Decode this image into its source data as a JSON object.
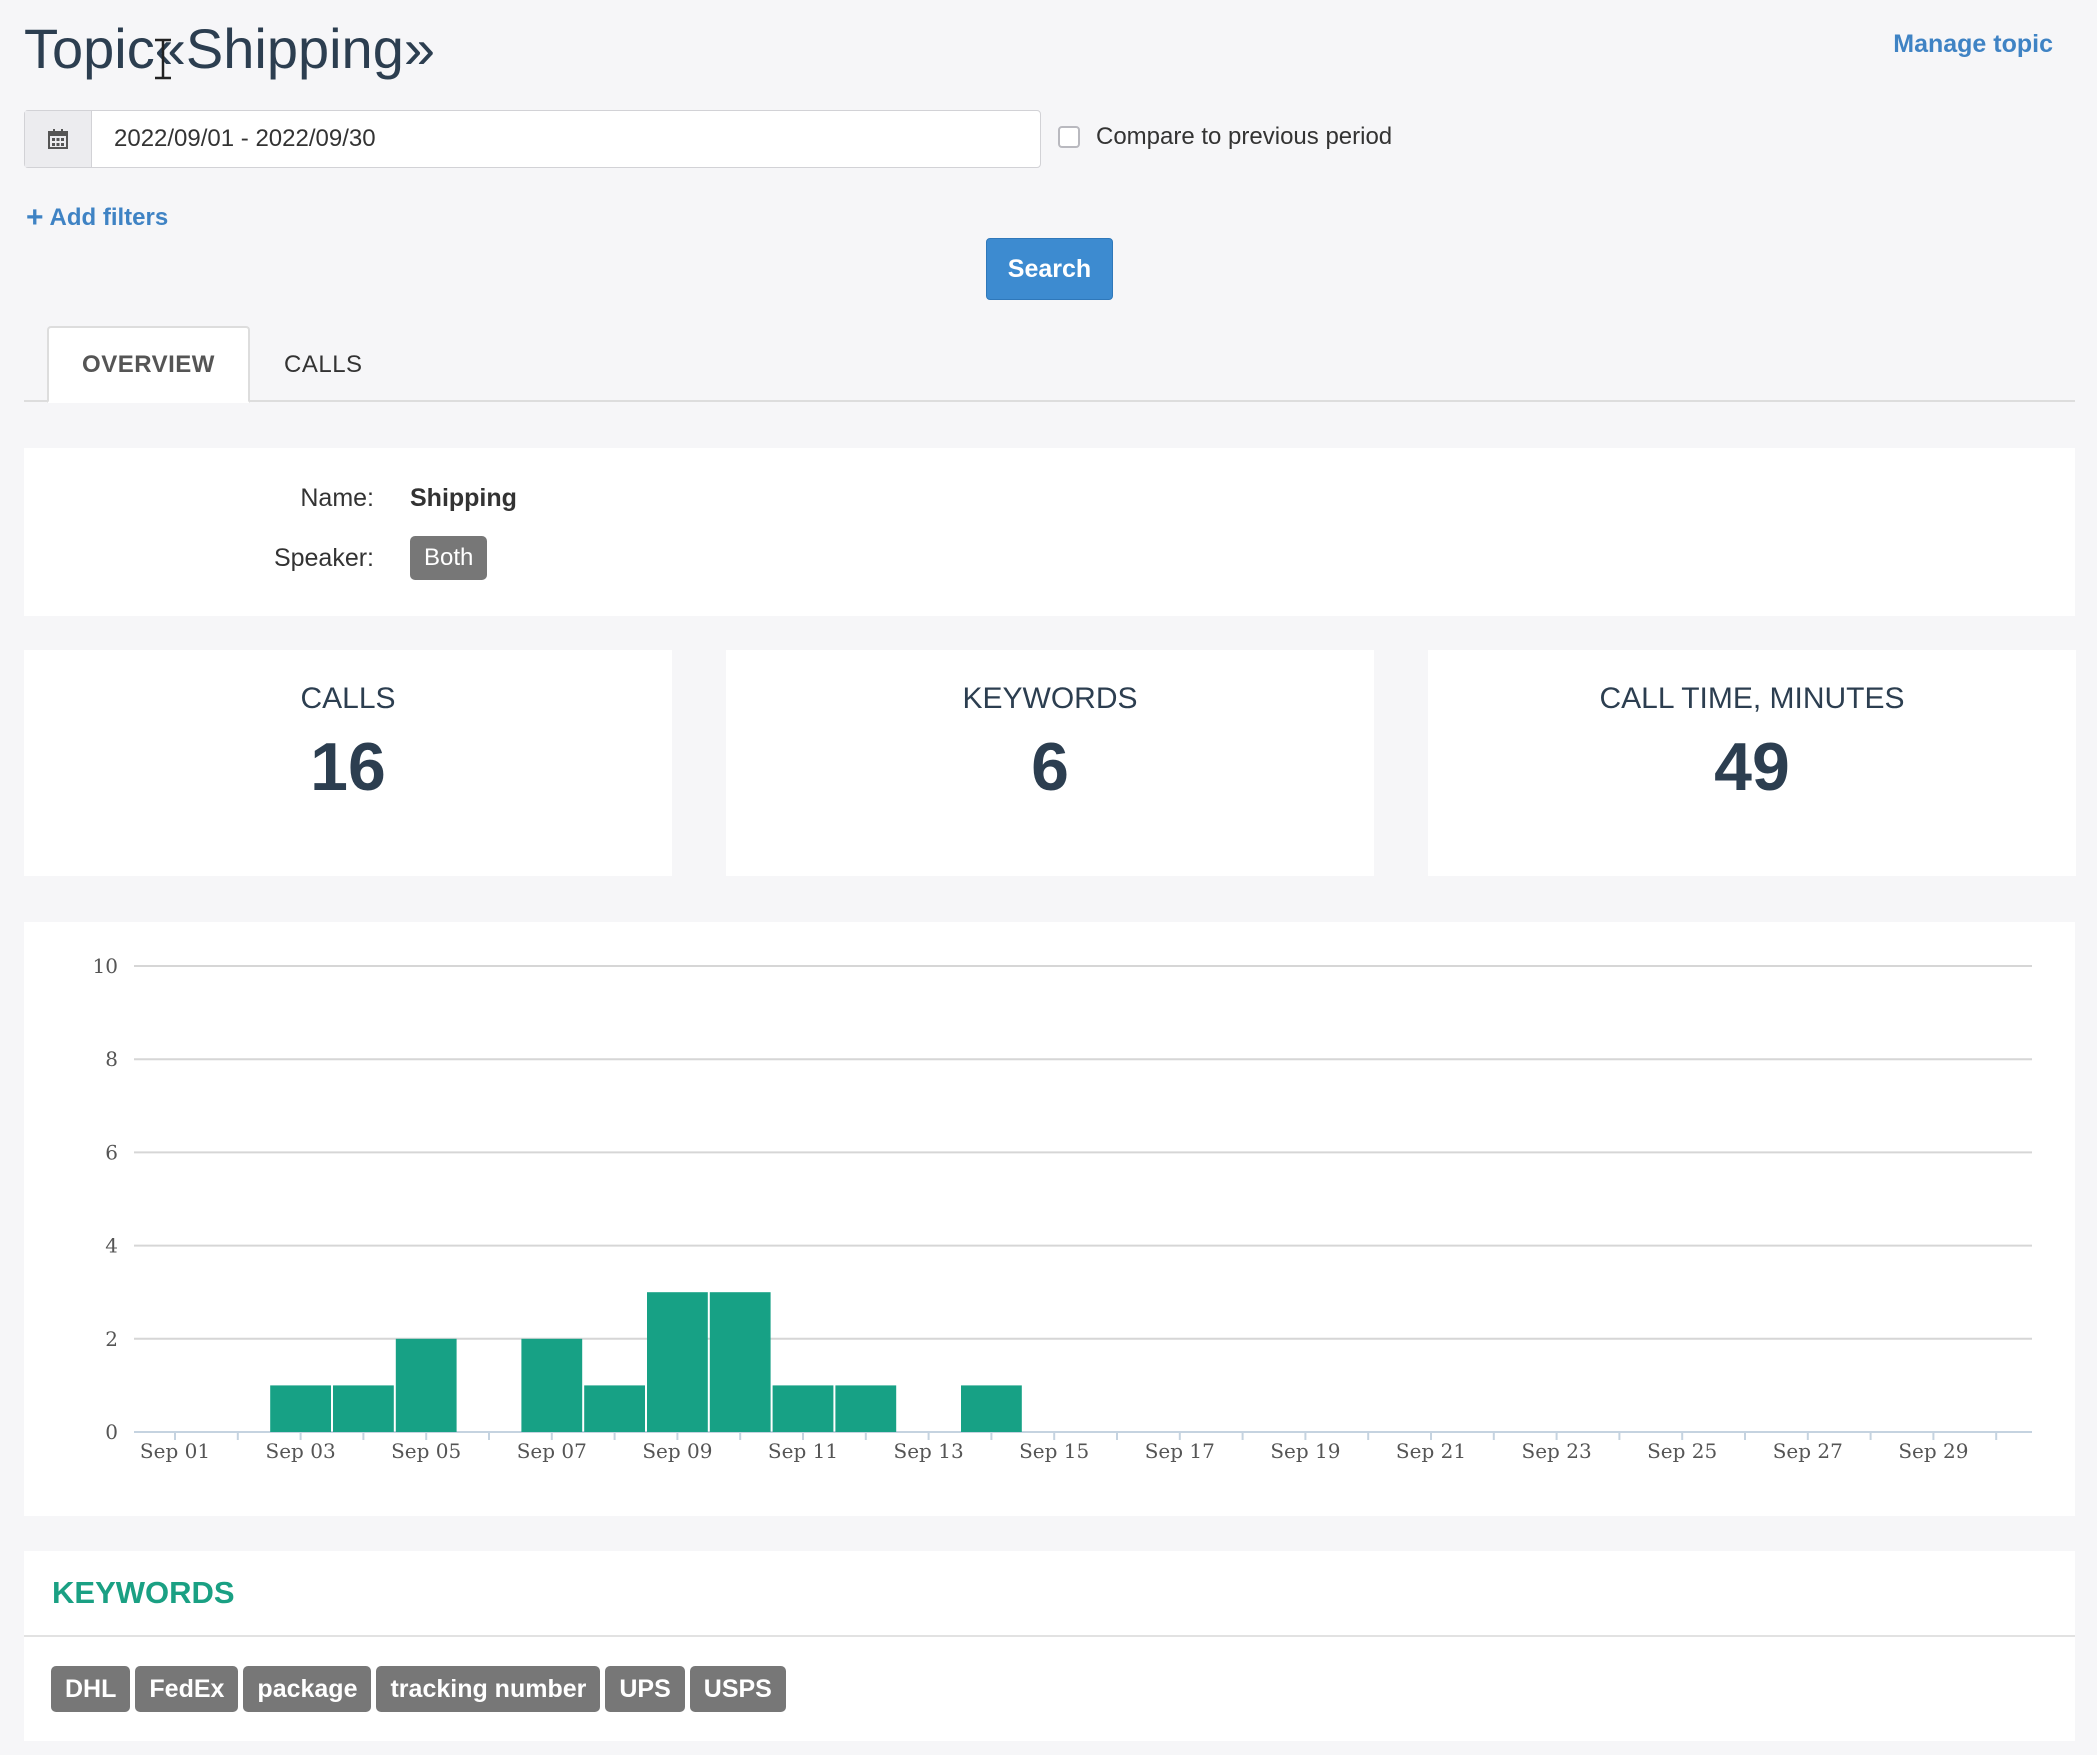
{
  "header": {
    "title": "Topic«Shipping»",
    "manage_link": "Manage topic"
  },
  "filters": {
    "date_range": "2022/09/01 - 2022/09/30",
    "compare_label": "Compare to previous period",
    "add_filters_label": "Add filters",
    "search_label": "Search"
  },
  "tabs": [
    {
      "label": "OVERVIEW",
      "active": true
    },
    {
      "label": "CALLS",
      "active": false
    }
  ],
  "info": {
    "name_label": "Name:",
    "name_value": "Shipping",
    "speaker_label": "Speaker:",
    "speaker_value": "Both"
  },
  "stats": [
    {
      "label": "CALLS",
      "value": "16"
    },
    {
      "label": "KEYWORDS",
      "value": "6"
    },
    {
      "label": "CALL TIME, MINUTES",
      "value": "49"
    }
  ],
  "chart_data": {
    "type": "bar",
    "title": "",
    "xlabel": "",
    "ylabel": "",
    "ylim": [
      0,
      10
    ],
    "yticks": [
      0,
      2,
      4,
      6,
      8,
      10
    ],
    "categories": [
      "Sep 01",
      "Sep 02",
      "Sep 03",
      "Sep 04",
      "Sep 05",
      "Sep 06",
      "Sep 07",
      "Sep 08",
      "Sep 09",
      "Sep 10",
      "Sep 11",
      "Sep 12",
      "Sep 13",
      "Sep 14",
      "Sep 15",
      "Sep 16",
      "Sep 17",
      "Sep 18",
      "Sep 19",
      "Sep 20",
      "Sep 21",
      "Sep 22",
      "Sep 23",
      "Sep 24",
      "Sep 25",
      "Sep 26",
      "Sep 27",
      "Sep 28",
      "Sep 29",
      "Sep 30"
    ],
    "xtick_labels": [
      "Sep 01",
      "Sep 03",
      "Sep 05",
      "Sep 07",
      "Sep 09",
      "Sep 11",
      "Sep 13",
      "Sep 15",
      "Sep 17",
      "Sep 19",
      "Sep 21",
      "Sep 23",
      "Sep 25",
      "Sep 27",
      "Sep 29"
    ],
    "values": [
      0,
      0,
      1,
      1,
      2,
      0,
      2,
      1,
      3,
      3,
      1,
      1,
      0,
      1,
      0,
      0,
      0,
      0,
      0,
      0,
      0,
      0,
      0,
      0,
      0,
      0,
      0,
      0,
      0,
      0
    ],
    "grid": true,
    "bar_color": "#17a185"
  },
  "keywords": {
    "title": "KEYWORDS",
    "items": [
      "DHL",
      "FedEx",
      "package",
      "tracking number",
      "UPS",
      "USPS"
    ]
  },
  "colors": {
    "accent": "#3d8bd0",
    "title": "#2c3e50",
    "keyword_title": "#1aa083",
    "badge": "#777777"
  },
  "icons": {
    "date": "calendar-icon",
    "add": "plus-icon",
    "cursor": "text-cursor-icon"
  }
}
